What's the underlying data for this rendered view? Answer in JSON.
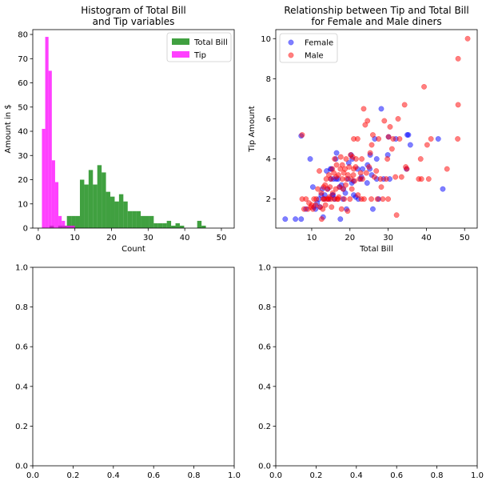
{
  "chart_data": [
    {
      "type": "histogram",
      "title_line1": "Histogram of Total Bill",
      "title_line2": "and Tip variables",
      "xlabel": "Count",
      "ylabel": "Amount in $",
      "xlim": [
        -1.5,
        53.5
      ],
      "ylim": [
        0,
        82
      ],
      "xticks": [
        0,
        10,
        20,
        30,
        40,
        50
      ],
      "yticks": [
        0,
        10,
        20,
        30,
        40,
        50,
        60,
        70,
        80
      ],
      "legend_position": "upper-right",
      "series": [
        {
          "name": "Total Bill",
          "color": "#008000",
          "alpha": 0.75,
          "bin_start": 3.07,
          "bin_width": 1.186,
          "counts": [
            1,
            0,
            1,
            1,
            5,
            5,
            5,
            20,
            18,
            24,
            18,
            26,
            23,
            15,
            13,
            11,
            14,
            11,
            7,
            7,
            7,
            5,
            5,
            5,
            2,
            2,
            2,
            3,
            1,
            2,
            1,
            0,
            0,
            0,
            3,
            1,
            0
          ]
        },
        {
          "name": "Tip",
          "color": "#ff00ff",
          "alpha": 0.75,
          "bin_start": 1.0,
          "bin_width": 0.9,
          "counts": [
            41,
            79,
            65,
            28,
            19,
            5,
            3,
            1,
            1,
            1
          ]
        }
      ]
    },
    {
      "type": "scatter",
      "title_line1": "Relationship between Tip and Total Bill",
      "title_line2": "for Female and Male diners",
      "xlabel": "Total Bill",
      "ylabel": "Tip Amount",
      "xlim": [
        0.6,
        53.3
      ],
      "ylim": [
        0.55,
        10.45
      ],
      "xticks": [
        10,
        20,
        30,
        40,
        50
      ],
      "yticks": [
        2,
        4,
        6,
        8,
        10
      ],
      "legend_position": "upper-left",
      "series": [
        {
          "name": "Female",
          "color": "#0000ff",
          "alpha": 0.5,
          "points": [
            [
              3.07,
              1.0
            ],
            [
              5.75,
              1.0
            ],
            [
              7.25,
              1.0
            ],
            [
              7.25,
              5.15
            ],
            [
              8.5,
              1.5
            ],
            [
              9.6,
              4.0
            ],
            [
              10.3,
              2.6
            ],
            [
              10.6,
              1.6
            ],
            [
              11.0,
              1.5
            ],
            [
              11.4,
              1.8
            ],
            [
              11.9,
              2.0
            ],
            [
              12.2,
              1.6
            ],
            [
              12.5,
              2.2
            ],
            [
              12.8,
              2.5
            ],
            [
              13.0,
              1.1
            ],
            [
              13.3,
              2.0
            ],
            [
              13.4,
              2.2
            ],
            [
              13.9,
              3.4
            ],
            [
              14.2,
              2.5
            ],
            [
              14.5,
              2.0
            ],
            [
              14.9,
              3.5
            ],
            [
              15.0,
              3.0
            ],
            [
              15.2,
              3.5
            ],
            [
              15.4,
              2.2
            ],
            [
              15.6,
              2.2
            ],
            [
              15.7,
              3.0
            ],
            [
              16.0,
              2.0
            ],
            [
              16.3,
              4.0
            ],
            [
              16.4,
              3.0
            ],
            [
              16.5,
              4.3
            ],
            [
              16.9,
              3.0
            ],
            [
              17.3,
              2.6
            ],
            [
              17.5,
              1.0
            ],
            [
              17.8,
              2.7
            ],
            [
              18.2,
              2.0
            ],
            [
              18.3,
              2.5
            ],
            [
              18.8,
              2.3
            ],
            [
              19.1,
              1.5
            ],
            [
              19.5,
              3.0
            ],
            [
              19.7,
              3.8
            ],
            [
              20.3,
              4.2
            ],
            [
              20.5,
              2.8
            ],
            [
              20.6,
              4.0
            ],
            [
              20.9,
              2.9
            ],
            [
              21.0,
              2.2
            ],
            [
              21.5,
              2.1
            ],
            [
              22.0,
              3.5
            ],
            [
              22.2,
              2.0
            ],
            [
              22.8,
              3.0
            ],
            [
              23.0,
              3.1
            ],
            [
              23.3,
              3.5
            ],
            [
              24.5,
              2.8
            ],
            [
              24.6,
              3.7
            ],
            [
              25.2,
              3.5
            ],
            [
              25.3,
              4.2
            ],
            [
              25.7,
              3.2
            ],
            [
              26.0,
              1.5
            ],
            [
              26.5,
              5.0
            ],
            [
              27.0,
              4.0
            ],
            [
              27.0,
              3.0
            ],
            [
              27.5,
              2.0
            ],
            [
              28.2,
              6.5
            ],
            [
              28.8,
              3.0
            ],
            [
              29.9,
              4.2
            ],
            [
              30.1,
              5.1
            ],
            [
              30.4,
              3.0
            ],
            [
              32.0,
              5.0
            ],
            [
              34.8,
              3.5
            ],
            [
              35.0,
              5.2
            ],
            [
              35.3,
              5.2
            ],
            [
              35.8,
              4.7
            ],
            [
              43.1,
              5.0
            ],
            [
              44.3,
              2.5
            ]
          ]
        },
        {
          "name": "Male",
          "color": "#ff0000",
          "alpha": 0.5,
          "points": [
            [
              7.5,
              5.2
            ],
            [
              7.5,
              2.0
            ],
            [
              8.0,
              1.5
            ],
            [
              8.5,
              2.0
            ],
            [
              9.0,
              1.5
            ],
            [
              9.3,
              1.8
            ],
            [
              9.8,
              1.6
            ],
            [
              10.0,
              1.7
            ],
            [
              10.3,
              1.5
            ],
            [
              10.6,
              2.0
            ],
            [
              11.0,
              1.7
            ],
            [
              11.2,
              2.0
            ],
            [
              11.6,
              2.5
            ],
            [
              12.0,
              3.4
            ],
            [
              12.2,
              1.6
            ],
            [
              12.5,
              2.3
            ],
            [
              12.6,
              1.0
            ],
            [
              12.9,
              1.5
            ],
            [
              13.0,
              2.0
            ],
            [
              13.1,
              2.6
            ],
            [
              13.3,
              2.0
            ],
            [
              13.5,
              2.7
            ],
            [
              13.6,
              1.7
            ],
            [
              13.8,
              3.0
            ],
            [
              14.0,
              2.0
            ],
            [
              14.1,
              2.5
            ],
            [
              14.3,
              2.0
            ],
            [
              14.5,
              3.2
            ],
            [
              14.6,
              2.1
            ],
            [
              14.8,
              2.6
            ],
            [
              15.0,
              2.0
            ],
            [
              15.0,
              3.0
            ],
            [
              15.2,
              1.6
            ],
            [
              15.4,
              3.5
            ],
            [
              15.5,
              2.3
            ],
            [
              15.8,
              3.3
            ],
            [
              15.9,
              2.0
            ],
            [
              16.0,
              4.0
            ],
            [
              16.3,
              2.5
            ],
            [
              16.4,
              3.1
            ],
            [
              16.5,
              3.7
            ],
            [
              16.7,
              2.0
            ],
            [
              16.9,
              2.0
            ],
            [
              17.0,
              3.2
            ],
            [
              17.1,
              2.1
            ],
            [
              17.3,
              2.6
            ],
            [
              17.5,
              3.5
            ],
            [
              17.6,
              4.1
            ],
            [
              17.8,
              1.5
            ],
            [
              18.0,
              3.0
            ],
            [
              18.0,
              3.7
            ],
            [
              18.2,
              2.5
            ],
            [
              18.4,
              3.3
            ],
            [
              18.5,
              2.0
            ],
            [
              18.7,
              3.5
            ],
            [
              18.9,
              2.7
            ],
            [
              19.0,
              4.0
            ],
            [
              19.1,
              3.0
            ],
            [
              19.4,
              1.4
            ],
            [
              19.5,
              3.2
            ],
            [
              19.8,
              3.6
            ],
            [
              20.0,
              2.0
            ],
            [
              20.2,
              4.2
            ],
            [
              20.3,
              3.0
            ],
            [
              20.5,
              2.5
            ],
            [
              20.7,
              4.1
            ],
            [
              20.9,
              3.2
            ],
            [
              21.0,
              3.5
            ],
            [
              21.0,
              5.0
            ],
            [
              21.2,
              2.9
            ],
            [
              21.5,
              3.6
            ],
            [
              21.6,
              4.0
            ],
            [
              22.0,
              5.0
            ],
            [
              22.1,
              2.2
            ],
            [
              22.5,
              3.0
            ],
            [
              22.8,
              3.3
            ],
            [
              23.0,
              2.0
            ],
            [
              23.1,
              4.0
            ],
            [
              23.3,
              3.0
            ],
            [
              23.6,
              6.5
            ],
            [
              23.7,
              2.0
            ],
            [
              24.0,
              5.7
            ],
            [
              24.3,
              3.3
            ],
            [
              24.6,
              5.9
            ],
            [
              25.0,
              3.6
            ],
            [
              25.3,
              4.3
            ],
            [
              25.6,
              2.0
            ],
            [
              25.7,
              4.7
            ],
            [
              26.0,
              5.2
            ],
            [
              26.4,
              3.1
            ],
            [
              26.9,
              3.4
            ],
            [
              27.2,
              2.0
            ],
            [
              27.5,
              5.0
            ],
            [
              28.0,
              3.0
            ],
            [
              28.2,
              2.6
            ],
            [
              28.6,
              2.0
            ],
            [
              29.0,
              5.9
            ],
            [
              29.5,
              3.0
            ],
            [
              29.8,
              4.0
            ],
            [
              30.0,
              2.0
            ],
            [
              30.1,
              5.1
            ],
            [
              30.5,
              5.6
            ],
            [
              31.0,
              4.5
            ],
            [
              31.3,
              5.0
            ],
            [
              31.9,
              3.1
            ],
            [
              32.2,
              1.2
            ],
            [
              32.6,
              6.0
            ],
            [
              33.0,
              5.0
            ],
            [
              33.5,
              3.1
            ],
            [
              34.3,
              6.7
            ],
            [
              34.6,
              3.6
            ],
            [
              34.9,
              3.5
            ],
            [
              38.0,
              3.0
            ],
            [
              38.5,
              4.0
            ],
            [
              38.7,
              3.0
            ],
            [
              39.4,
              7.6
            ],
            [
              40.2,
              4.7
            ],
            [
              40.6,
              3.0
            ],
            [
              41.2,
              5.0
            ],
            [
              45.4,
              3.5
            ],
            [
              48.2,
              5.0
            ],
            [
              48.3,
              9.0
            ],
            [
              48.3,
              6.7
            ],
            [
              50.8,
              10.0
            ]
          ]
        }
      ]
    },
    {
      "type": "empty",
      "xlim": [
        0,
        1
      ],
      "ylim": [
        0,
        1
      ],
      "xticks": [
        0.0,
        0.2,
        0.4,
        0.6,
        0.8,
        1.0
      ],
      "yticks": [
        0.0,
        0.2,
        0.4,
        0.6,
        0.8,
        1.0
      ]
    },
    {
      "type": "empty",
      "xlim": [
        0,
        1
      ],
      "ylim": [
        0,
        1
      ],
      "xticks": [
        0.0,
        0.2,
        0.4,
        0.6,
        0.8,
        1.0
      ],
      "yticks": [
        0.0,
        0.2,
        0.4,
        0.6,
        0.8,
        1.0
      ]
    }
  ]
}
